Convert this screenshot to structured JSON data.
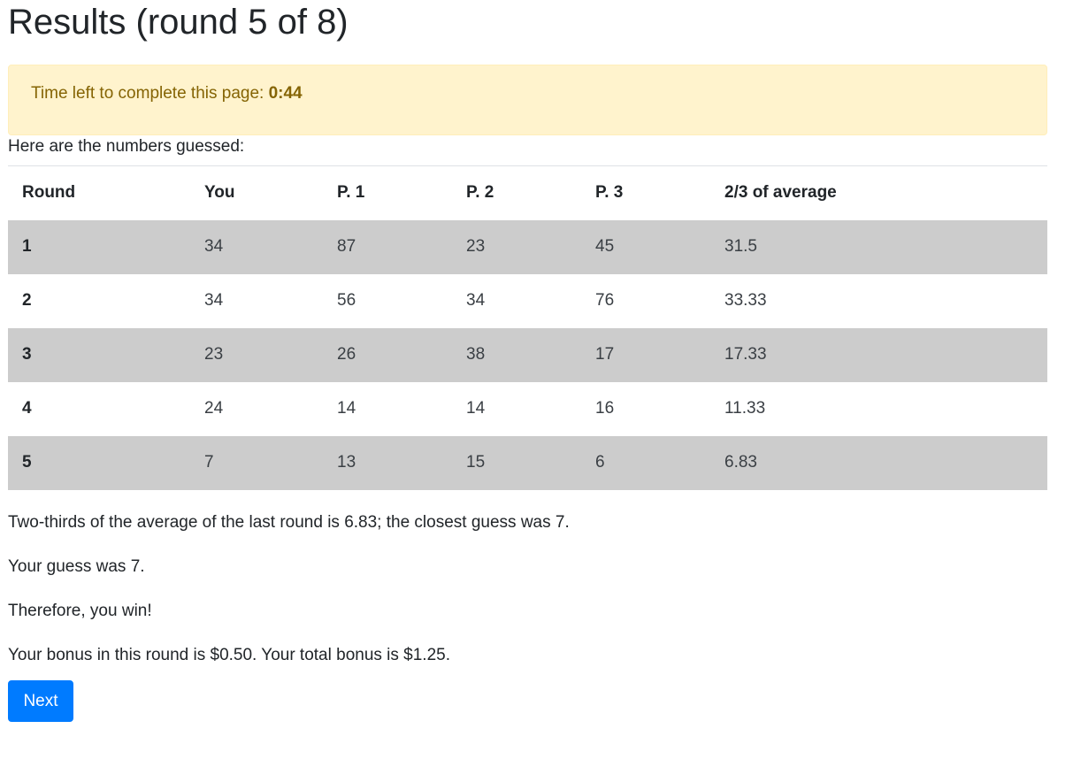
{
  "page": {
    "title": "Results (round 5 of 8)"
  },
  "timer": {
    "label": "Time left to complete this page: ",
    "value": "0:44"
  },
  "intro_text": "Here are the numbers guessed:",
  "table": {
    "headers": [
      "Round",
      "You",
      "P. 1",
      "P. 2",
      "P. 3",
      "2/3 of average"
    ],
    "rows": [
      [
        "1",
        "34",
        "87",
        "23",
        "45",
        "31.5"
      ],
      [
        "2",
        "34",
        "56",
        "34",
        "76",
        "33.33"
      ],
      [
        "3",
        "23",
        "26",
        "38",
        "17",
        "17.33"
      ],
      [
        "4",
        "24",
        "14",
        "14",
        "16",
        "11.33"
      ],
      [
        "5",
        "7",
        "13",
        "15",
        "6",
        "6.83"
      ]
    ]
  },
  "summary": {
    "line1": "Two-thirds of the average of the last round is 6.83; the closest guess was 7.",
    "line2": "Your guess was 7.",
    "line3": "Therefore, you win!",
    "line4": "Your bonus in this round is $0.50. Your total bonus is $1.25."
  },
  "buttons": {
    "next_label": "Next"
  },
  "colors": {
    "alert_bg": "#fff3cd",
    "alert_text": "#856404",
    "stripe_row": "#cccccc",
    "primary": "#007bff"
  }
}
